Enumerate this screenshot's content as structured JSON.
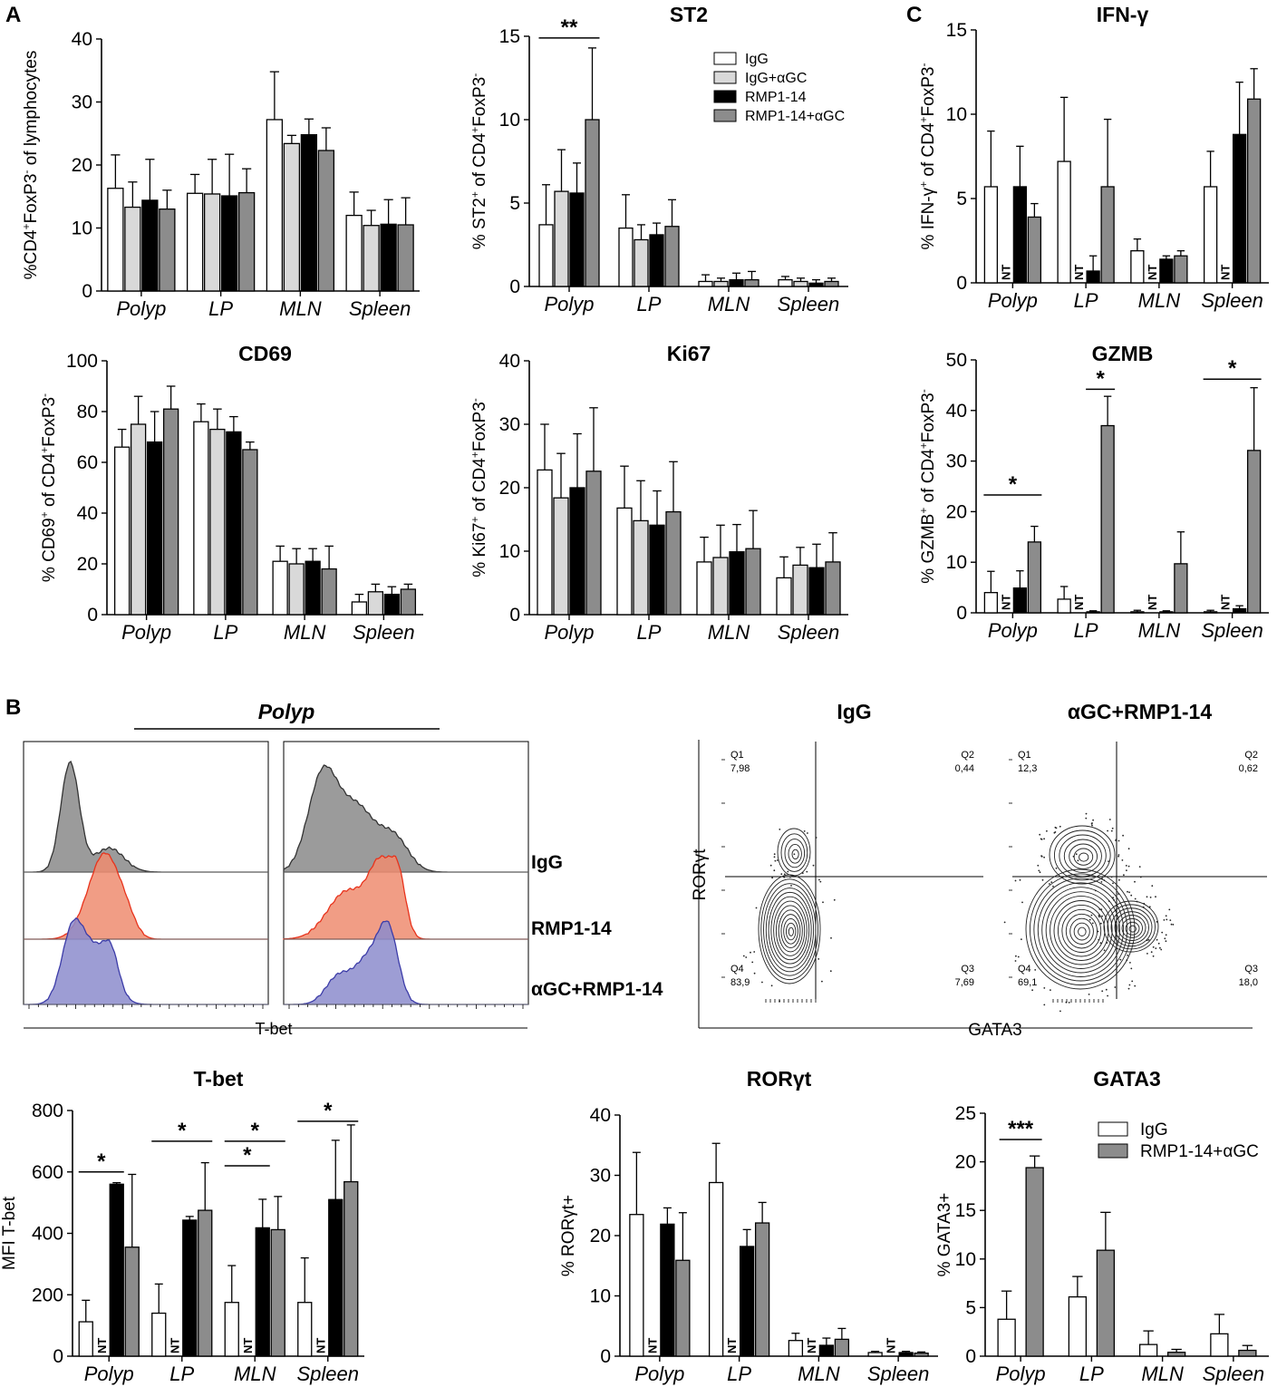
{
  "panel_labels": {
    "a": "A",
    "b": "B",
    "c": "C"
  },
  "colors": {
    "IgG": "#ffffff",
    "IgG+αGC": "#d9d9d9",
    "RMP1-14": "#000000",
    "RMP1-14+αGC": "#8c8c8c",
    "axis": "#000000",
    "hist_igg": "#8a8a8a",
    "hist_rmp": "#ef8c70",
    "hist_rmp_line": "#e8331c",
    "hist_agc": "#8c8ccc",
    "hist_agc_line": "#3c3ca8"
  },
  "legend_4": [
    "IgG",
    "IgG+αGC",
    "RMP1-14",
    "RMP1-14+αGC"
  ],
  "legend_2": [
    "IgG",
    "RMP1-14+αGC"
  ],
  "nt_label": "NT",
  "chart_data": [
    {
      "id": "lymph",
      "type": "bar",
      "title": "",
      "ylabel_parts": [
        "%CD4",
        "+",
        "FoxP3",
        "-",
        " of lymphocytes"
      ],
      "ylim": [
        0,
        40
      ],
      "yticks": [
        0,
        10,
        20,
        30,
        40
      ],
      "categories": [
        "Polyp",
        "LP",
        "MLN",
        "Spleen"
      ],
      "series": [
        {
          "name": "IgG",
          "values": [
            16.3,
            15.5,
            27.2,
            12.0
          ],
          "errors": [
            5.3,
            3.0,
            7.6,
            3.7
          ]
        },
        {
          "name": "IgG+αGC",
          "values": [
            13.3,
            15.4,
            23.4,
            10.4
          ],
          "errors": [
            4.0,
            5.5,
            1.3,
            2.4
          ]
        },
        {
          "name": "RMP1-14",
          "values": [
            14.4,
            15.1,
            24.8,
            10.6
          ],
          "errors": [
            6.5,
            6.6,
            2.5,
            3.9
          ]
        },
        {
          "name": "RMP1-14+αGC",
          "values": [
            13.0,
            15.6,
            22.3,
            10.5
          ],
          "errors": [
            3.0,
            3.8,
            3.6,
            4.3
          ]
        }
      ],
      "sig": []
    },
    {
      "id": "st2",
      "type": "bar",
      "title": "ST2",
      "ylabel_parts": [
        "% ST2",
        "+",
        " of CD4",
        "+",
        "FoxP3",
        "-"
      ],
      "ylim": [
        0,
        15
      ],
      "yticks": [
        0,
        5,
        10,
        15
      ],
      "categories": [
        "Polyp",
        "LP",
        "MLN",
        "Spleen"
      ],
      "series": [
        {
          "name": "IgG",
          "values": [
            3.7,
            3.5,
            0.3,
            0.4
          ],
          "errors": [
            2.4,
            2.0,
            0.4,
            0.2
          ]
        },
        {
          "name": "IgG+αGC",
          "values": [
            5.7,
            2.8,
            0.3,
            0.3
          ],
          "errors": [
            2.5,
            0.9,
            0.2,
            0.2
          ]
        },
        {
          "name": "RMP1-14",
          "values": [
            5.6,
            3.1,
            0.4,
            0.2
          ],
          "errors": [
            1.8,
            0.7,
            0.4,
            0.2
          ]
        },
        {
          "name": "RMP1-14+αGC",
          "values": [
            10.0,
            3.6,
            0.4,
            0.3
          ],
          "errors": [
            4.3,
            1.6,
            0.5,
            0.2
          ]
        }
      ],
      "sig": [
        {
          "group": 0,
          "from": 0,
          "to": 3,
          "label": "**",
          "y": 14.9
        }
      ]
    },
    {
      "id": "ifng",
      "type": "bar",
      "title": "IFN-γ",
      "ylabel_parts": [
        "% IFN-γ",
        "+",
        " of CD4",
        "+",
        "FoxP3",
        "-"
      ],
      "ylim": [
        0,
        15
      ],
      "yticks": [
        0,
        5,
        10,
        15
      ],
      "categories": [
        "Polyp",
        "LP",
        "MLN",
        "Spleen"
      ],
      "series": [
        {
          "name": "IgG",
          "values": [
            5.7,
            7.2,
            1.9,
            5.7
          ],
          "errors": [
            3.3,
            3.8,
            0.7,
            2.1
          ]
        },
        {
          "name": "IgG+αGC",
          "values": [
            null,
            null,
            null,
            null
          ],
          "errors": [
            0,
            0,
            0,
            0
          ]
        },
        {
          "name": "RMP1-14",
          "values": [
            5.7,
            0.7,
            1.4,
            8.8
          ],
          "errors": [
            2.4,
            0.9,
            0.2,
            3.1
          ]
        },
        {
          "name": "RMP1-14+αGC",
          "values": [
            3.9,
            5.7,
            1.6,
            10.9
          ],
          "errors": [
            0.8,
            4.0,
            0.3,
            1.8
          ]
        }
      ],
      "sig": []
    },
    {
      "id": "cd69",
      "type": "bar",
      "title": "CD69",
      "ylabel_parts": [
        "% CD69",
        "+",
        " of CD4",
        "+",
        "FoxP3",
        "-"
      ],
      "ylim": [
        0,
        100
      ],
      "yticks": [
        0,
        20,
        40,
        60,
        80,
        100
      ],
      "categories": [
        "Polyp",
        "LP",
        "MLN",
        "Spleen"
      ],
      "series": [
        {
          "name": "IgG",
          "values": [
            66,
            76,
            21,
            5
          ],
          "errors": [
            7,
            7,
            6,
            3
          ]
        },
        {
          "name": "IgG+αGC",
          "values": [
            75,
            73,
            20,
            9
          ],
          "errors": [
            11,
            8,
            6,
            3
          ]
        },
        {
          "name": "RMP1-14",
          "values": [
            68,
            72,
            21,
            8
          ],
          "errors": [
            12,
            6,
            5,
            3
          ]
        },
        {
          "name": "RMP1-14+αGC",
          "values": [
            81,
            65,
            18,
            10
          ],
          "errors": [
            9,
            3,
            9,
            2
          ]
        }
      ],
      "sig": []
    },
    {
      "id": "ki67",
      "type": "bar",
      "title": "Ki67",
      "ylabel_parts": [
        "% Ki67",
        "+",
        " of CD4",
        "+",
        "FoxP3",
        "-"
      ],
      "ylim": [
        0,
        40
      ],
      "yticks": [
        0,
        10,
        20,
        30,
        40
      ],
      "categories": [
        "Polyp",
        "LP",
        "MLN",
        "Spleen"
      ],
      "series": [
        {
          "name": "IgG",
          "values": [
            22.8,
            16.8,
            8.3,
            5.8
          ],
          "errors": [
            7.2,
            6.6,
            3.9,
            3.3
          ]
        },
        {
          "name": "IgG+αGC",
          "values": [
            18.4,
            14.8,
            9.0,
            7.8
          ],
          "errors": [
            7.0,
            6.3,
            5.1,
            2.8
          ]
        },
        {
          "name": "RMP1-14",
          "values": [
            20.0,
            14.1,
            9.9,
            7.4
          ],
          "errors": [
            8.5,
            5.4,
            4.3,
            3.7
          ]
        },
        {
          "name": "RMP1-14+αGC",
          "values": [
            22.6,
            16.2,
            10.4,
            8.3
          ],
          "errors": [
            10.0,
            7.9,
            6.0,
            4.6
          ]
        }
      ],
      "sig": []
    },
    {
      "id": "gzmb",
      "type": "bar",
      "title": "GZMB",
      "ylabel_parts": [
        "% GZMB",
        "+",
        " of CD4",
        "+",
        "FoxP3",
        "-"
      ],
      "ylim": [
        0,
        50
      ],
      "yticks": [
        0,
        10,
        20,
        30,
        40,
        50
      ],
      "categories": [
        "Polyp",
        "LP",
        "MLN",
        "Spleen"
      ],
      "series": [
        {
          "name": "IgG",
          "values": [
            4.0,
            2.7,
            0.2,
            0.2
          ],
          "errors": [
            4.2,
            2.5,
            0.3,
            0.3
          ]
        },
        {
          "name": "IgG+αGC",
          "values": [
            null,
            null,
            null,
            null
          ],
          "errors": [
            0,
            0,
            0,
            0
          ]
        },
        {
          "name": "RMP1-14",
          "values": [
            4.9,
            0.2,
            0.2,
            0.8
          ],
          "errors": [
            3.4,
            0.2,
            0.2,
            0.6
          ]
        },
        {
          "name": "RMP1-14+αGC",
          "values": [
            14.0,
            37.0,
            9.7,
            32.1
          ],
          "errors": [
            3.1,
            5.8,
            6.3,
            12.4
          ]
        }
      ],
      "sig": [
        {
          "group": 0,
          "from": 0,
          "to": 3,
          "label": "*",
          "y": 23.3
        },
        {
          "group": 1,
          "from": 2,
          "to": 3,
          "label": "*",
          "y": 44.2
        },
        {
          "group": 3,
          "from": 0,
          "to": 3,
          "label": "*",
          "y": 46.2
        }
      ]
    },
    {
      "id": "tbet_mfi",
      "type": "bar",
      "title": "T-bet",
      "ylabel_parts": [
        "MFI T-bet"
      ],
      "ylim": [
        0,
        800
      ],
      "yticks": [
        0,
        200,
        400,
        600,
        800
      ],
      "categories": [
        "Polyp",
        "LP",
        "MLN",
        "Spleen"
      ],
      "series": [
        {
          "name": "IgG",
          "values": [
            112,
            140,
            175,
            175
          ],
          "errors": [
            70,
            95,
            120,
            145
          ]
        },
        {
          "name": "IgG+αGC",
          "values": [
            null,
            null,
            null,
            null
          ],
          "errors": [
            0,
            0,
            0,
            0
          ]
        },
        {
          "name": "RMP1-14",
          "values": [
            560,
            443,
            418,
            510
          ],
          "errors": [
            5,
            12,
            93,
            193
          ]
        },
        {
          "name": "RMP1-14+αGC",
          "values": [
            355,
            475,
            412,
            568
          ],
          "errors": [
            237,
            155,
            108,
            185
          ]
        }
      ],
      "sig": [
        {
          "group": 0,
          "from": 0,
          "to": 2,
          "label": "*",
          "y": 600
        },
        {
          "group": 1,
          "from": 0,
          "to": 3,
          "label": "*",
          "y": 700
        },
        {
          "group": 2,
          "from": 0,
          "to": 2,
          "label": "*",
          "y": 620
        },
        {
          "group": 2,
          "from": 0,
          "to": 3,
          "label": "*",
          "y": 700
        },
        {
          "group": 3,
          "from": 0,
          "to": 3,
          "label": "*",
          "y": 765
        }
      ]
    },
    {
      "id": "rorgt",
      "type": "bar",
      "title": "RORγt",
      "ylabel_parts": [
        "% RORγt+"
      ],
      "ylim": [
        0,
        40
      ],
      "yticks": [
        0,
        10,
        20,
        30,
        40
      ],
      "categories": [
        "Polyp",
        "LP",
        "MLN",
        "Spleen"
      ],
      "series": [
        {
          "name": "IgG",
          "values": [
            23.5,
            28.8,
            2.6,
            0.6
          ],
          "errors": [
            10.3,
            6.5,
            1.2,
            0.2
          ]
        },
        {
          "name": "IgG+αGC",
          "values": [
            null,
            null,
            null,
            null
          ],
          "errors": [
            0,
            0,
            0,
            0
          ]
        },
        {
          "name": "RMP1-14",
          "values": [
            21.9,
            18.2,
            1.8,
            0.6
          ],
          "errors": [
            2.7,
            2.8,
            1.2,
            0.2
          ]
        },
        {
          "name": "RMP1-14+αGC",
          "values": [
            15.9,
            22.1,
            2.8,
            0.5
          ],
          "errors": [
            7.9,
            3.4,
            1.8,
            0.2
          ]
        }
      ],
      "sig": []
    },
    {
      "id": "gata3",
      "type": "bar",
      "title": "GATA3",
      "ylabel_parts": [
        "% GATA3+"
      ],
      "ylim": [
        0,
        25
      ],
      "yticks": [
        0,
        5,
        10,
        15,
        20,
        25
      ],
      "categories": [
        "Polyp",
        "LP",
        "MLN",
        "Spleen"
      ],
      "series": [
        {
          "name": "IgG",
          "values": [
            3.8,
            6.1,
            1.2,
            2.3
          ],
          "errors": [
            2.9,
            2.1,
            1.4,
            2.0
          ]
        },
        {
          "name": "RMP1-14+αGC",
          "values": [
            19.4,
            10.9,
            0.4,
            0.6
          ],
          "errors": [
            1.2,
            3.9,
            0.3,
            0.5
          ]
        }
      ],
      "sig": [
        {
          "group": 0,
          "from": 0,
          "to": 1,
          "label": "***",
          "y": 22.3
        }
      ]
    }
  ],
  "histograms": {
    "title": "Polyp",
    "xlabel": "T-bet",
    "rows": [
      "IgG",
      "RMP1-14",
      "αGC+RMP1-14"
    ]
  },
  "contours": {
    "ylabel": "RORγt",
    "xlabel": "GATA3",
    "plots": [
      {
        "title": "IgG",
        "q1": {
          "name": "Q1",
          "value": "7,98"
        },
        "q2": {
          "name": "Q2",
          "value": "0,44"
        },
        "q3": {
          "name": "Q3",
          "value": "7,69"
        },
        "q4": {
          "name": "Q4",
          "value": "83,9"
        }
      },
      {
        "title": "αGC+RMP1-14",
        "q1": {
          "name": "Q1",
          "value": "12,3"
        },
        "q2": {
          "name": "Q2",
          "value": "0,62"
        },
        "q3": {
          "name": "Q3",
          "value": "18,0"
        },
        "q4": {
          "name": "Q4",
          "value": "69,1"
        }
      }
    ]
  }
}
